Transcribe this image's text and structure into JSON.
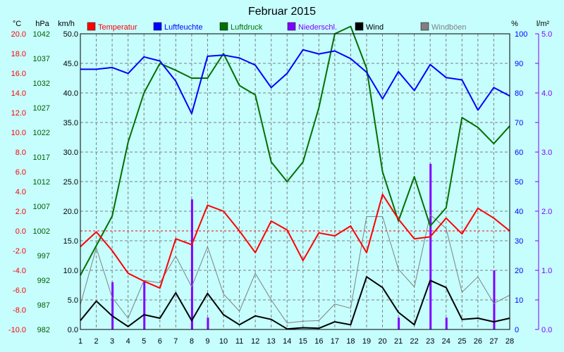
{
  "colors": {
    "background": "#c6fefe",
    "temperature": "#ff0000",
    "humidity": "#0000ff",
    "pressure": "#007000",
    "precipitation": "#8000ff",
    "wind": "#000000",
    "gusts": "#808080",
    "grid": "#7f7f7f"
  },
  "chart_data": {
    "type": "line",
    "title": "Februar 2015",
    "grid": true,
    "legend_position": "top",
    "x": [
      1,
      2,
      3,
      4,
      5,
      6,
      7,
      8,
      9,
      10,
      11,
      12,
      13,
      14,
      15,
      16,
      17,
      18,
      19,
      20,
      21,
      22,
      23,
      24,
      25,
      26,
      27,
      28
    ],
    "x_tick_labels": [
      "1",
      "2",
      "3",
      "4",
      "5",
      "6",
      "7",
      "8",
      "9",
      "10",
      "11",
      "12",
      "13",
      "14",
      "15",
      "16",
      "17",
      "18",
      "19",
      "20",
      "21",
      "22",
      "23",
      "24",
      "25",
      "26",
      "27",
      "28"
    ],
    "axes": {
      "temperature": {
        "unit": "°C",
        "ylim": [
          -10,
          20
        ],
        "ticks": [
          "-10.0",
          "-8.0",
          "-6.0",
          "-4.0",
          "-2.0",
          "0.0",
          "2.0",
          "4.0",
          "6.0",
          "8.0",
          "10.0",
          "12.0",
          "14.0",
          "16.0",
          "18.0",
          "20.0"
        ]
      },
      "pressure": {
        "unit": "hPa",
        "ylim": [
          982,
          1042
        ],
        "ticks": [
          "982",
          "987",
          "992",
          "997",
          "1002",
          "1007",
          "1012",
          "1017",
          "1022",
          "1027",
          "1032",
          "1037",
          "1042"
        ]
      },
      "wind": {
        "unit": "km/h",
        "ylim": [
          0,
          50
        ],
        "ticks": [
          "0.0",
          "5.0",
          "10.0",
          "15.0",
          "20.0",
          "25.0",
          "30.0",
          "35.0",
          "40.0",
          "45.0",
          "50.0"
        ]
      },
      "humidity": {
        "unit": "%",
        "ylim": [
          0,
          100
        ],
        "ticks": [
          "0",
          "10",
          "20",
          "30",
          "40",
          "50",
          "60",
          "70",
          "80",
          "90",
          "100"
        ]
      },
      "precipitation": {
        "unit": "l/m²",
        "ylim": [
          0,
          5
        ],
        "ticks": [
          "0.0",
          "1.0",
          "2.0",
          "3.0",
          "4.0",
          "5.0"
        ]
      }
    },
    "series": [
      {
        "name": "Temperatur",
        "key": "temperature",
        "axis": "temperature",
        "style": "line",
        "values": [
          -1.6,
          -0.1,
          -2.0,
          -4.3,
          -5.1,
          -5.8,
          -0.8,
          -1.4,
          2.6,
          2.0,
          0.0,
          -2.2,
          1.0,
          0.1,
          -3.0,
          -0.2,
          -0.5,
          0.5,
          -2.2,
          3.7,
          1.2,
          -0.8,
          -0.6,
          1.3,
          -0.3,
          2.3,
          1.3,
          0.0
        ]
      },
      {
        "name": "Luftfeuchte",
        "key": "humidity",
        "axis": "humidity",
        "style": "line",
        "values": [
          88,
          88,
          88.6,
          86.6,
          92.2,
          90.8,
          84,
          73,
          92.4,
          92.8,
          91.8,
          89.4,
          81.8,
          86.6,
          94.6,
          93.2,
          94.2,
          91.6,
          87,
          78,
          87.2,
          80.8,
          89.6,
          85.2,
          84.4,
          74.2,
          81.8,
          79
        ]
      },
      {
        "name": "Luftdruck",
        "key": "pressure",
        "axis": "pressure",
        "style": "line",
        "values": [
          993,
          999,
          1005,
          1020,
          1030,
          1036,
          1034.6,
          1033,
          1033,
          1038,
          1031.5,
          1029.6,
          1016,
          1012,
          1016,
          1027,
          1042,
          1043.5,
          1035,
          1014,
          1004,
          1013,
          1003,
          1006.7,
          1025,
          1023,
          1019.7,
          1023.3
        ]
      },
      {
        "name": "Niederschl.",
        "key": "precipitation",
        "axis": "precipitation",
        "style": "bar",
        "values": [
          0,
          0,
          0.8,
          0,
          0.8,
          0,
          0,
          2.2,
          0.2,
          0,
          0,
          0,
          0,
          0,
          0,
          0,
          0,
          0,
          0,
          0,
          0.2,
          0,
          2.8,
          0.2,
          0,
          0,
          1.0,
          0
        ]
      },
      {
        "name": "Wind",
        "key": "wind",
        "axis": "wind",
        "style": "line",
        "values": [
          1.5,
          4.8,
          2.3,
          0.5,
          2.5,
          1.9,
          6.2,
          1.5,
          6.1,
          2.5,
          0.8,
          2.3,
          1.7,
          0.1,
          0.3,
          0.2,
          1.3,
          0.8,
          8.9,
          7.1,
          2.9,
          0.8,
          8.3,
          7.1,
          1.7,
          1.9,
          1.3,
          1.9
        ]
      },
      {
        "name": "Windböen",
        "key": "gusts",
        "axis": "wind",
        "style": "line",
        "values": [
          4.2,
          13.8,
          5.4,
          1.9,
          8.3,
          7.9,
          12.4,
          7.2,
          14,
          6,
          3.1,
          9.5,
          5,
          1.1,
          1.4,
          1.5,
          4.3,
          3.6,
          19.1,
          19.1,
          10.2,
          7.2,
          19.4,
          17.1,
          6.3,
          8.9,
          4.4,
          5.8
        ]
      }
    ]
  }
}
